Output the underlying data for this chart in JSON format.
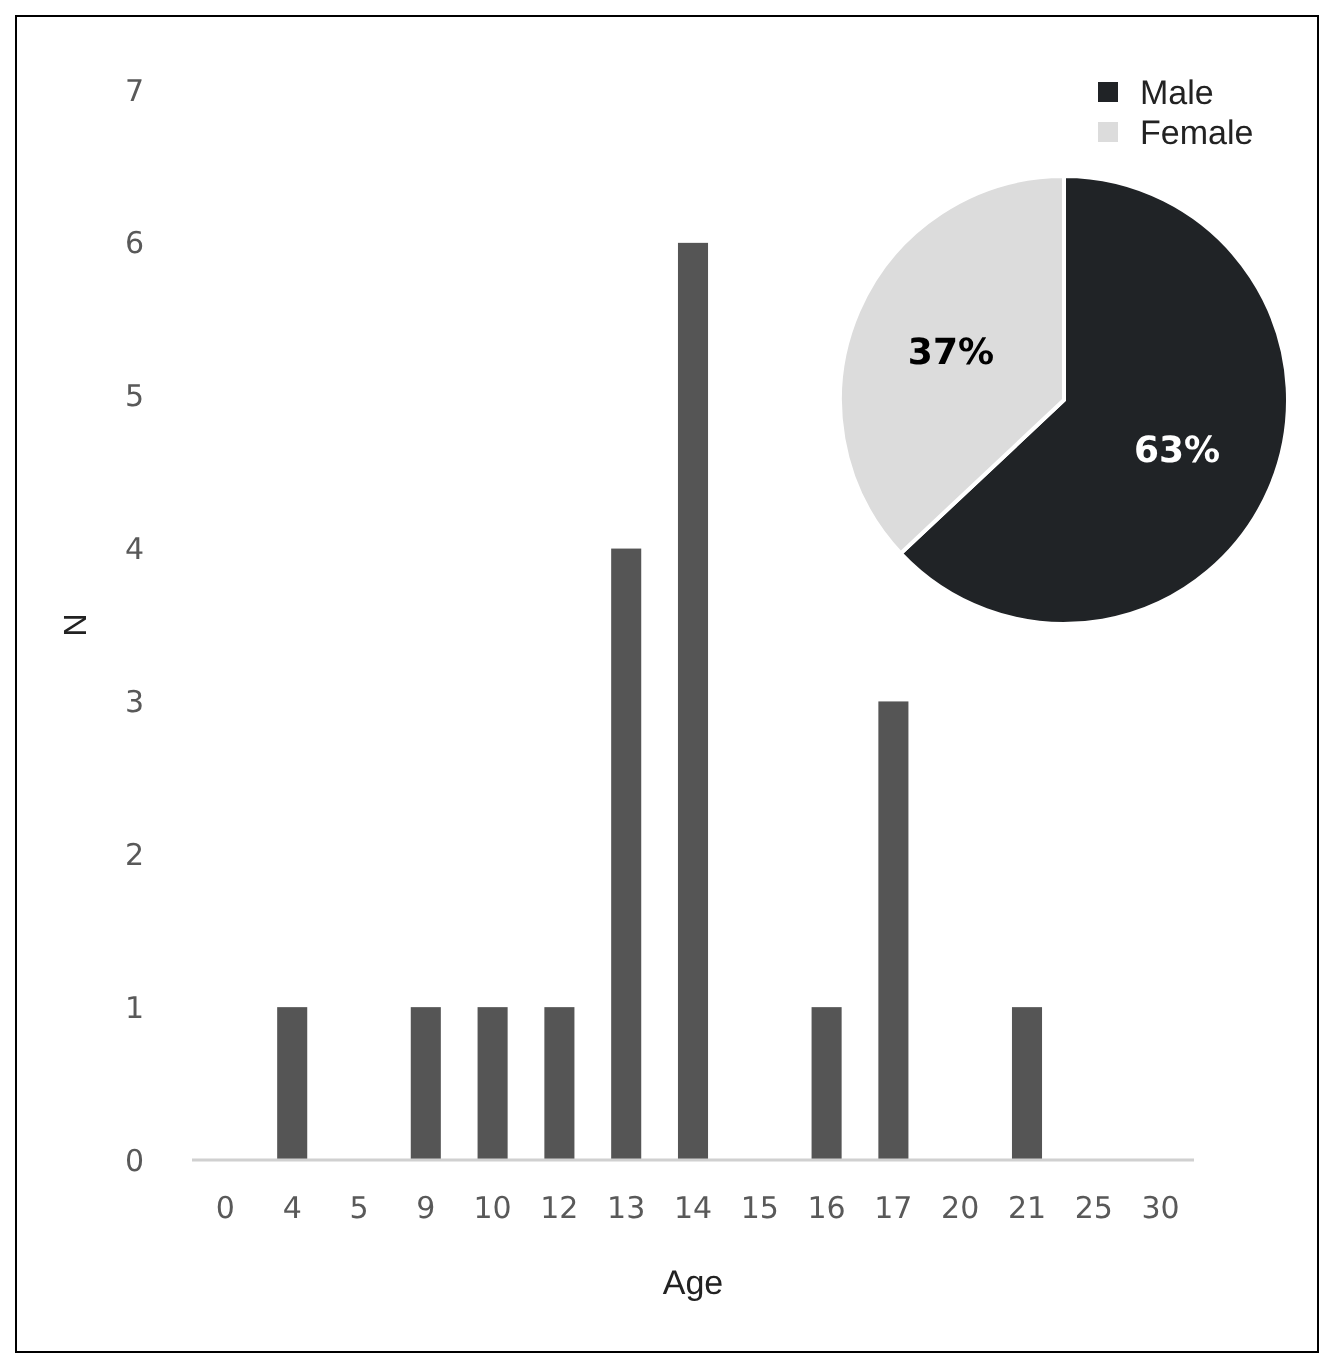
{
  "chart_data": [
    {
      "type": "bar",
      "xlabel": "Age",
      "ylabel": "N",
      "categories": [
        "0",
        "4",
        "5",
        "9",
        "10",
        "12",
        "13",
        "14",
        "15",
        "16",
        "17",
        "20",
        "21",
        "25",
        "30"
      ],
      "values": [
        0,
        1,
        0,
        1,
        1,
        1,
        4,
        6,
        0,
        1,
        3,
        0,
        1,
        0,
        0
      ],
      "color": "#555555",
      "ylim": [
        0,
        7
      ],
      "yticks": [
        0,
        1,
        2,
        3,
        4,
        5,
        6,
        7
      ],
      "grid": false
    },
    {
      "type": "pie",
      "categories": [
        "Male",
        "Female"
      ],
      "values": [
        63,
        37
      ],
      "colors": [
        "#202326",
        "#dcdcdc"
      ],
      "value_labels": [
        "63%",
        "37%"
      ],
      "legend": "top right"
    }
  ]
}
